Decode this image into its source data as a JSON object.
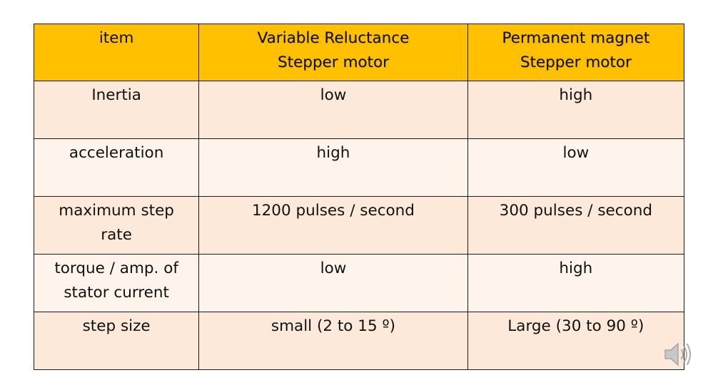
{
  "table": {
    "headers": [
      "item",
      "Variable  Reluctance\nStepper motor",
      "Permanent magnet\nStepper motor"
    ],
    "rows": [
      [
        "Inertia",
        "low",
        "high"
      ],
      [
        "acceleration",
        "high",
        "low"
      ],
      [
        "maximum step\nrate",
        "1200 pulses / second",
        "300 pulses / second"
      ],
      [
        "torque / amp. of\nstator current",
        "low",
        "high"
      ],
      [
        "step size",
        "small (2 to 15 º)",
        "Large (30 to 90 º)"
      ]
    ]
  },
  "icons": {
    "audio": "speaker-icon"
  },
  "colors": {
    "header_bg": "#ffc000",
    "row_odd_bg": "#fde9d9",
    "row_even_bg": "#fef4ec",
    "border": "#1a1a1a"
  }
}
